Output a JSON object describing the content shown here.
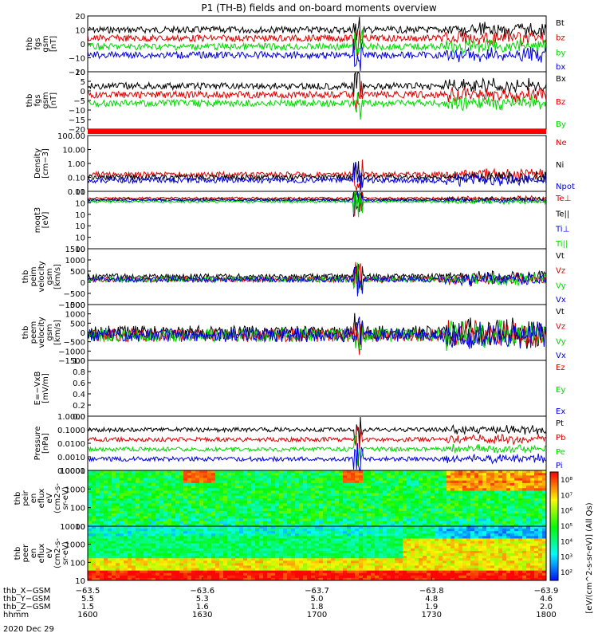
{
  "title": "P1 (TH-B) fields and on-board moments overview",
  "colors": {
    "black": "#000000",
    "red": "#e00000",
    "green": "#00d800",
    "blue": "#0000e0",
    "bar": "#ff0000"
  },
  "panels": [
    {
      "id": "fgs",
      "ylabel": [
        "thb",
        "fgs",
        "gsm",
        "[nT]"
      ],
      "yticks": [
        "20",
        "10",
        "0",
        "−10",
        "−20"
      ],
      "legend": [
        {
          "t": "Bt",
          "c": "black"
        },
        {
          "t": "bz",
          "c": "red"
        },
        {
          "t": "by",
          "c": "green"
        },
        {
          "t": "bx",
          "c": "blue"
        }
      ]
    },
    {
      "id": "fgs_gse",
      "ylabel": [
        "thb",
        "fgs",
        "gsm",
        "[nT]"
      ],
      "yticks": [
        "10",
        "5",
        "0",
        "−5",
        "−10",
        "−15",
        "−20"
      ],
      "legend": [
        {
          "t": "Bx",
          "c": "black"
        },
        {
          "t": "Bz",
          "c": "red"
        },
        {
          "t": "By",
          "c": "green"
        }
      ]
    },
    {
      "id": "density",
      "ylabel": [
        "Density",
        "[cm−3]"
      ],
      "yticks": [
        "100.00",
        "10.00",
        "1.00",
        "0.10",
        "0.01"
      ],
      "legend": [
        {
          "t": "Ne",
          "c": "red"
        },
        {
          "t": "Ni",
          "c": "black"
        },
        {
          "t": "Npot",
          "c": "blue"
        }
      ]
    },
    {
      "id": "temp",
      "ylabel": [
        "moqt3",
        "[eV]"
      ],
      "yticks": [
        "10",
        "10",
        "10",
        "10",
        "10",
        "10"
      ],
      "legend": [
        {
          "t": "Te⊥",
          "c": "red"
        },
        {
          "t": "Te||",
          "c": "black"
        },
        {
          "t": "Ti⊥",
          "c": "blue"
        },
        {
          "t": "Ti||",
          "c": "green"
        }
      ]
    },
    {
      "id": "ivel",
      "ylabel": [
        "thb",
        "peim",
        "velocity",
        "gsm",
        "[km/s]"
      ],
      "yticks": [
        "1500",
        "1000",
        "500",
        "0",
        "−500",
        "−1000"
      ],
      "legend": [
        {
          "t": "Vt",
          "c": "black"
        },
        {
          "t": "Vz",
          "c": "red"
        },
        {
          "t": "Vy",
          "c": "green"
        },
        {
          "t": "Vx",
          "c": "blue"
        }
      ]
    },
    {
      "id": "evel",
      "ylabel": [
        "thb",
        "peem",
        "velocity",
        "gsm",
        "[km/s]"
      ],
      "yticks": [
        "1500",
        "1000",
        "500",
        "0",
        "−500",
        "−1000",
        "−1500"
      ],
      "legend": [
        {
          "t": "Vt",
          "c": "black"
        },
        {
          "t": "Vz",
          "c": "red"
        },
        {
          "t": "Vy",
          "c": "green"
        },
        {
          "t": "Vx",
          "c": "blue"
        }
      ]
    },
    {
      "id": "efield",
      "ylabel": [
        "E=−VxB",
        "[mV/m]"
      ],
      "yticks": [
        "1.0",
        "0.8",
        "0.6",
        "0.4",
        "0.2",
        "0.0"
      ],
      "legend": [
        {
          "t": "Ez",
          "c": "red"
        },
        {
          "t": "Ey",
          "c": "green"
        },
        {
          "t": "Ex",
          "c": "blue"
        }
      ]
    },
    {
      "id": "pressure",
      "ylabel": [
        "Pressure",
        "[nPa]"
      ],
      "yticks": [
        "1.0000",
        "0.1000",
        "0.0100",
        "0.0010",
        "0.0001"
      ],
      "legend": [
        {
          "t": "Pt",
          "c": "black"
        },
        {
          "t": "Pb",
          "c": "red"
        },
        {
          "t": "Pe",
          "c": "green"
        },
        {
          "t": "Pi",
          "c": "blue"
        }
      ]
    },
    {
      "id": "ispec",
      "ylabel": [
        "thb",
        "peir",
        "en",
        "eflux",
        "eV",
        "(cm2-s-",
        "sr-eV)"
      ],
      "yticks": [
        "10000",
        "1000",
        "100",
        "10"
      ],
      "legend": []
    },
    {
      "id": "espec",
      "ylabel": [
        "thb",
        "peer",
        "en",
        "eflux",
        "eV",
        "(cm2-s-",
        "sr-eV)"
      ],
      "yticks": [
        "10000",
        "1000",
        "100",
        "10"
      ],
      "legend": []
    }
  ],
  "colorbar": {
    "label": "[eV/(cm^2-s-sr-eV)] (All Qs)",
    "ticks": [
      "10⁸",
      "10⁷",
      "10⁶",
      "10⁵",
      "10⁴",
      "10³",
      "10²"
    ]
  },
  "xaxis": {
    "rows": [
      {
        "label": "thb_X−GSM",
        "vals": [
          "−63.5",
          "−63.6",
          "−63.7",
          "−63.8",
          "−63.9"
        ]
      },
      {
        "label": "thb_Y−GSM",
        "vals": [
          "5.5",
          "5.3",
          "5.0",
          "4.8",
          "4.6"
        ]
      },
      {
        "label": "thb_Z−GSM",
        "vals": [
          "1.5",
          "1.6",
          "1.8",
          "1.9",
          "2.0"
        ]
      },
      {
        "label": "hhmm",
        "vals": [
          "1600",
          "1630",
          "1700",
          "1730",
          "1800"
        ]
      }
    ],
    "date": "2020 Dec 29"
  },
  "chart_data": {
    "type": "line",
    "time_range": [
      "16:00",
      "18:00"
    ],
    "note_ticks": [
      "1600",
      "1630",
      "1700",
      "1730",
      "1800"
    ]
  }
}
